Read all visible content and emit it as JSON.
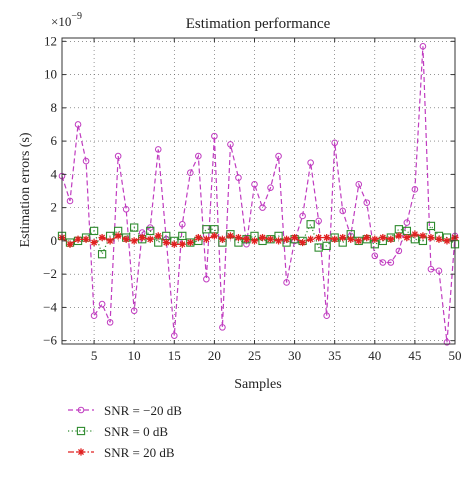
{
  "chart_data": {
    "type": "line",
    "title": "Estimation performance",
    "xlabel": "Samples",
    "ylabel": "Estimation errors (s)",
    "y_exponent_label": "×10",
    "y_exponent_power": "−9",
    "xlim": [
      1,
      50
    ],
    "ylim": [
      -6.2,
      12.2
    ],
    "x_ticks": [
      5,
      10,
      15,
      20,
      25,
      30,
      35,
      40,
      45,
      50
    ],
    "x_tick_labels": [
      "5",
      "10",
      "15",
      "20",
      "25",
      "30",
      "35",
      "40",
      "45",
      "50"
    ],
    "y_ticks": [
      -6,
      -4,
      -2,
      0,
      2,
      4,
      6,
      8,
      10,
      12
    ],
    "y_tick_labels": [
      "−6",
      "−4",
      "−2",
      "0",
      "2",
      "4",
      "6",
      "8",
      "10",
      "12"
    ],
    "grid": true,
    "legend_position": "bottom-left, below plot",
    "x": [
      1,
      2,
      3,
      4,
      5,
      6,
      7,
      8,
      9,
      10,
      11,
      12,
      13,
      14,
      15,
      16,
      17,
      18,
      19,
      20,
      21,
      22,
      23,
      24,
      25,
      26,
      27,
      28,
      29,
      30,
      31,
      32,
      33,
      34,
      35,
      36,
      37,
      38,
      39,
      40,
      41,
      42,
      43,
      44,
      45,
      46,
      47,
      48,
      49,
      50
    ],
    "series": [
      {
        "name": "SNR = −20 dB",
        "color": "#c03cc0",
        "line": "dashed",
        "marker": "circle",
        "values": [
          3.9,
          2.4,
          7.0,
          4.8,
          -4.5,
          -3.8,
          -4.9,
          5.1,
          1.9,
          -4.2,
          0.5,
          0.8,
          5.5,
          0.1,
          -5.7,
          1.0,
          4.1,
          5.1,
          -2.3,
          6.3,
          -5.2,
          5.8,
          3.8,
          -0.2,
          3.4,
          2.0,
          3.2,
          5.1,
          -2.5,
          0.0,
          1.5,
          4.7,
          1.2,
          -4.5,
          5.9,
          1.8,
          0.3,
          3.4,
          2.3,
          -0.9,
          -1.3,
          -1.3,
          -0.6,
          1.1,
          3.1,
          11.7,
          -1.7,
          -1.8,
          -6.1,
          0.3
        ]
      },
      {
        "name": "SNR = 0 dB",
        "color": "#2e8b2e",
        "line": "dotted",
        "marker": "square",
        "values": [
          0.3,
          -0.1,
          0.0,
          0.2,
          0.6,
          -0.8,
          0.3,
          0.6,
          0.2,
          0.8,
          0.1,
          0.6,
          -0.1,
          0.3,
          0.0,
          0.3,
          -0.1,
          0.0,
          0.7,
          0.7,
          -0.1,
          0.4,
          -0.1,
          0.1,
          0.3,
          0.0,
          0.1,
          0.3,
          -0.1,
          0.1,
          0.0,
          1.0,
          -0.4,
          -0.3,
          0.2,
          -0.1,
          0.4,
          0.0,
          0.1,
          -0.2,
          0.0,
          0.2,
          0.7,
          0.6,
          0.1,
          0.0,
          0.9,
          0.3,
          0.2,
          -0.2
        ]
      },
      {
        "name": "SNR = 20 dB",
        "color": "#e02020",
        "line": "dashdot",
        "marker": "star",
        "values": [
          0.2,
          -0.2,
          0.1,
          0.1,
          -0.1,
          0.2,
          0.0,
          0.3,
          0.1,
          0.0,
          0.2,
          0.1,
          0.3,
          -0.1,
          -0.2,
          -0.2,
          -0.1,
          0.2,
          0.1,
          0.3,
          0.1,
          0.3,
          0.2,
          0.1,
          0.0,
          0.2,
          0.1,
          0.0,
          0.1,
          0.2,
          -0.1,
          0.1,
          0.2,
          0.2,
          0.1,
          0.2,
          0.1,
          0.0,
          0.2,
          0.1,
          0.2,
          0.1,
          0.3,
          0.2,
          0.4,
          0.3,
          0.2,
          0.1,
          0.0,
          0.2
        ]
      }
    ]
  }
}
